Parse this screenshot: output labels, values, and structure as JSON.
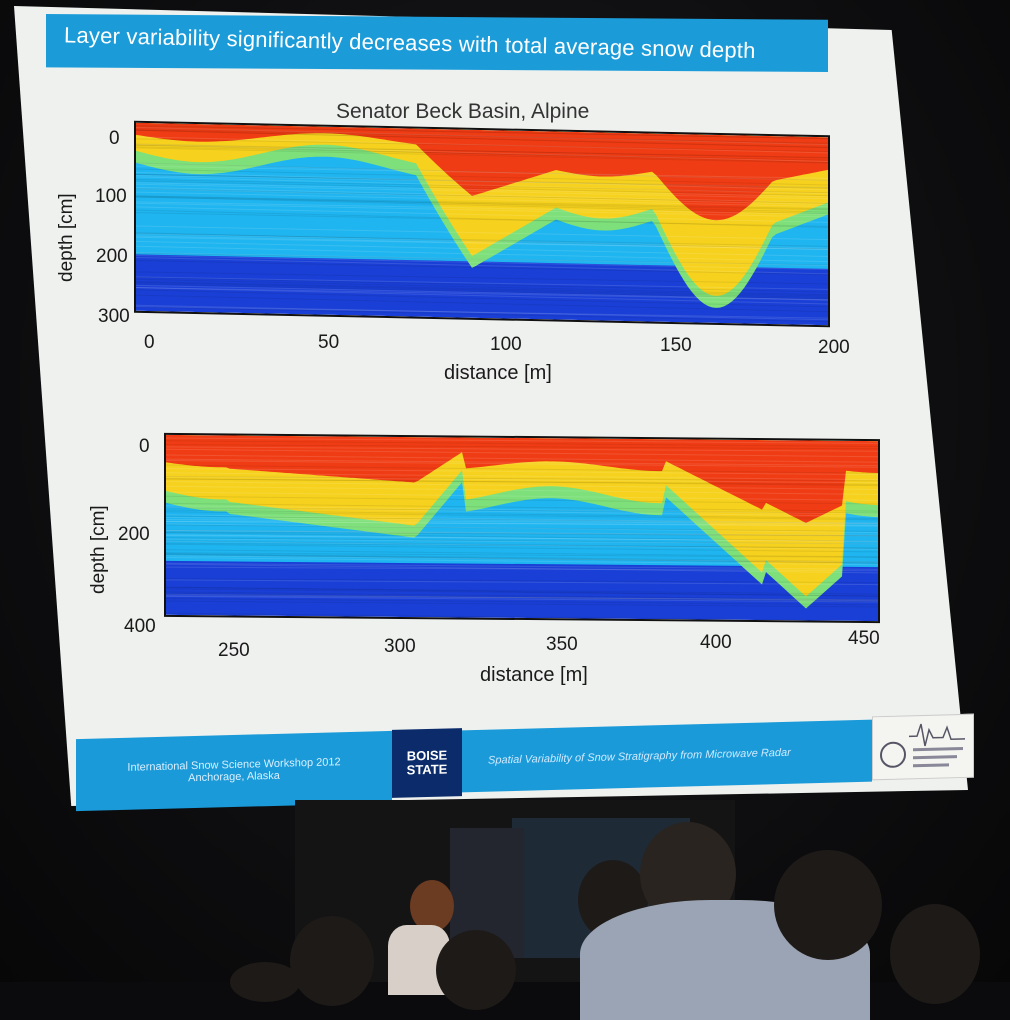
{
  "slide": {
    "headline": "Layer variability significantly decreases with total average snow depth",
    "chart_title": "Senator Beck Basin, Alpine",
    "footer_left_line1": "International Snow Science Workshop 2012",
    "footer_left_line2": "Anchorage, Alaska",
    "footer_logo_line1": "BOISE",
    "footer_logo_line2": "STATE",
    "footer_right": "Spatial Variability of Snow Stratigraphy from Microwave Radar"
  },
  "chart_data": [
    {
      "type": "heatmap",
      "title": "Senator Beck Basin, Alpine",
      "xlabel": "distance [m]",
      "ylabel": "depth [cm]",
      "xlim": [
        0,
        200
      ],
      "ylim": [
        300,
        0
      ],
      "x_ticks": [
        "0",
        "50",
        "100",
        "150",
        "200"
      ],
      "y_ticks": [
        "0",
        "100",
        "200",
        "300"
      ]
    },
    {
      "type": "heatmap",
      "xlabel": "distance [m]",
      "ylabel": "depth [cm]",
      "xlim": [
        225,
        450
      ],
      "ylim": [
        400,
        0
      ],
      "x_ticks": [
        "250",
        "300",
        "350",
        "400",
        "450"
      ],
      "y_ticks": [
        "0",
        "200",
        "400"
      ]
    }
  ],
  "colors": {
    "title_bar": "#1b9cd9",
    "footer": "#1a9ad8",
    "heat_hot": "#f03c14",
    "heat_warm": "#f6d21e",
    "heat_cool": "#1fb5f0",
    "heat_cold": "#1a3fd6"
  }
}
